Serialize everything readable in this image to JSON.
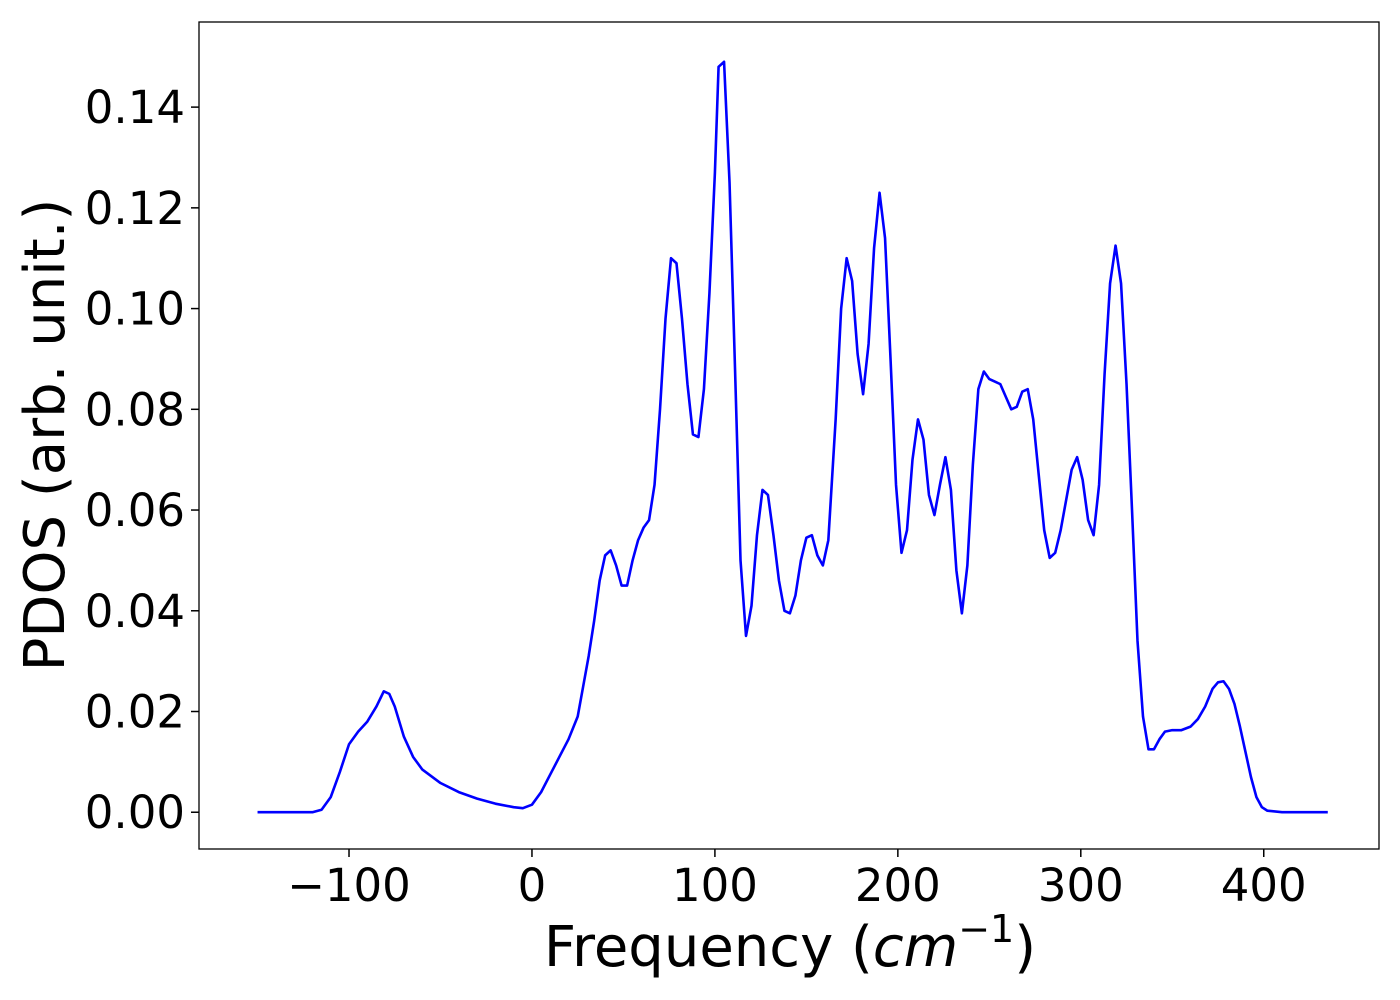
{
  "chart_data": {
    "type": "line",
    "xlabel": [
      "Frequency (",
      "cm",
      "−1",
      ")"
    ],
    "ylabel": "PDOS (arb. unit.)",
    "color": "#0000ff",
    "xlim": [
      -182,
      463
    ],
    "ylim": [
      -0.0073,
      0.1569
    ],
    "xticks": [
      {
        "value": -100,
        "label": "−100"
      },
      0,
      100,
      200,
      300,
      400
    ],
    "yticks": [
      {
        "value": 0,
        "label": "0.00"
      },
      {
        "value": 0.02,
        "label": "0.02"
      },
      {
        "value": 0.04,
        "label": "0.04"
      },
      {
        "value": 0.06,
        "label": "0.06"
      },
      {
        "value": 0.08,
        "label": "0.08"
      },
      {
        "value": 0.1,
        "label": "0.10"
      },
      {
        "value": 0.12,
        "label": "0.12"
      },
      {
        "value": 0.14,
        "label": "0.14"
      }
    ],
    "grid": false,
    "x": [
      -150,
      -120,
      -115,
      -110,
      -105,
      -100,
      -95,
      -90,
      -85,
      -81,
      -78,
      -75,
      -70,
      -65,
      -60,
      -50,
      -40,
      -30,
      -20,
      -10,
      -5,
      0,
      5,
      10,
      15,
      20,
      25,
      28,
      31,
      34,
      37,
      40,
      43,
      46,
      49,
      52,
      55,
      58,
      61,
      64,
      67,
      70,
      73,
      76,
      79,
      82,
      85,
      88,
      91,
      94,
      97,
      100,
      102,
      105,
      108,
      111,
      114,
      117,
      120,
      123,
      126,
      129,
      132,
      135,
      138,
      141,
      144,
      147,
      150,
      153,
      156,
      159,
      162,
      166,
      169,
      172,
      175,
      178,
      181,
      184,
      187,
      190,
      193,
      196,
      199,
      202,
      205,
      208,
      211,
      214,
      217,
      220,
      223,
      226,
      229,
      232,
      235,
      238,
      241,
      244,
      247,
      250,
      253,
      256,
      259,
      262,
      265,
      268,
      271,
      274,
      277,
      280,
      283,
      286,
      289,
      292,
      295,
      298,
      301,
      304,
      307,
      310,
      313,
      316,
      319,
      322,
      325,
      328,
      331,
      334,
      337,
      340,
      343,
      346,
      350,
      355,
      360,
      364,
      368,
      372,
      375,
      378,
      381,
      384,
      387,
      390,
      393,
      396,
      399,
      402,
      410,
      435
    ],
    "values": [
      0,
      0,
      0.0005,
      0.003,
      0.008,
      0.0135,
      0.016,
      0.018,
      0.021,
      0.024,
      0.0235,
      0.021,
      0.015,
      0.011,
      0.0085,
      0.0058,
      0.004,
      0.0027,
      0.0017,
      0.001,
      0.0008,
      0.0015,
      0.004,
      0.0075,
      0.011,
      0.0145,
      0.019,
      0.025,
      0.031,
      0.038,
      0.046,
      0.051,
      0.052,
      0.049,
      0.045,
      0.045,
      0.05,
      0.054,
      0.0565,
      0.058,
      0.065,
      0.08,
      0.098,
      0.11,
      0.109,
      0.098,
      0.085,
      0.075,
      0.0745,
      0.084,
      0.103,
      0.127,
      0.148,
      0.149,
      0.125,
      0.088,
      0.05,
      0.035,
      0.041,
      0.055,
      0.064,
      0.063,
      0.055,
      0.046,
      0.04,
      0.0395,
      0.043,
      0.05,
      0.0545,
      0.055,
      0.051,
      0.049,
      0.054,
      0.078,
      0.1,
      0.11,
      0.1055,
      0.091,
      0.083,
      0.093,
      0.112,
      0.123,
      0.114,
      0.09,
      0.065,
      0.0515,
      0.056,
      0.07,
      0.078,
      0.074,
      0.063,
      0.059,
      0.065,
      0.0705,
      0.064,
      0.048,
      0.0395,
      0.049,
      0.069,
      0.084,
      0.0875,
      0.086,
      0.0855,
      0.085,
      0.0825,
      0.08,
      0.0805,
      0.0835,
      0.084,
      0.078,
      0.067,
      0.056,
      0.0505,
      0.0515,
      0.056,
      0.062,
      0.068,
      0.0705,
      0.066,
      0.058,
      0.055,
      0.065,
      0.087,
      0.105,
      0.1125,
      0.105,
      0.085,
      0.06,
      0.034,
      0.019,
      0.0125,
      0.0125,
      0.0145,
      0.016,
      0.0163,
      0.0163,
      0.017,
      0.0185,
      0.021,
      0.0245,
      0.0258,
      0.026,
      0.0245,
      0.0215,
      0.017,
      0.012,
      0.007,
      0.003,
      0.001,
      0.0003,
      0,
      0
    ]
  }
}
